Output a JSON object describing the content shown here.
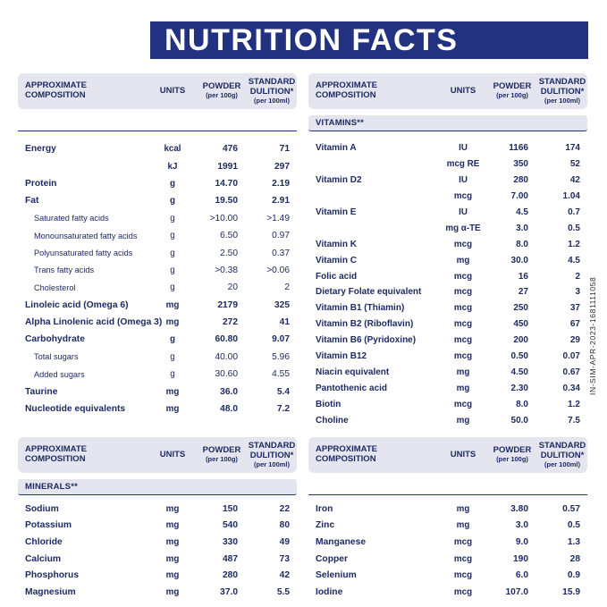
{
  "title": "NUTRITION FACTS",
  "side_code": "IN-SIM-APR-2023-1681111058",
  "colors": {
    "banner_navy": "#223180",
    "header_band": "#e5e5f0",
    "text_navy": "#1d2b63"
  },
  "header": {
    "composition": "APPROXIMATE COMPOSITION",
    "units": "UNITS",
    "powder": "POWDER",
    "powder_sub": "(per 100g)",
    "standard": "STANDARD DULITION*",
    "standard_sub": "(per 100ml)"
  },
  "tables": [
    {
      "section": "",
      "rows": [
        {
          "name": "Energy",
          "units": "kcal",
          "powder": "476",
          "standard": "71",
          "bold": true,
          "indent": false
        },
        {
          "name": "",
          "units": "kJ",
          "powder": "1991",
          "standard": "297",
          "bold": true,
          "indent": false
        },
        {
          "name": "Protein",
          "units": "g",
          "powder": "14.70",
          "standard": "2.19",
          "bold": true,
          "indent": false
        },
        {
          "name": "Fat",
          "units": "g",
          "powder": "19.50",
          "standard": "2.91",
          "bold": true,
          "indent": false
        },
        {
          "name": "Saturated fatty acids",
          "units": "g",
          "powder": ">10.00",
          "standard": ">1.49",
          "bold": false,
          "indent": true
        },
        {
          "name": "Monounsaturated fatty acids",
          "units": "g",
          "powder": "6.50",
          "standard": "0.97",
          "bold": false,
          "indent": true
        },
        {
          "name": "Polyunsaturated fatty acids",
          "units": "g",
          "powder": "2.50",
          "standard": "0.37",
          "bold": false,
          "indent": true
        },
        {
          "name": "Trans fatty acids",
          "units": "g",
          "powder": ">0.38",
          "standard": ">0.06",
          "bold": false,
          "indent": true
        },
        {
          "name": "Cholesterol",
          "units": "g",
          "powder": "20",
          "standard": "2",
          "bold": false,
          "indent": true
        },
        {
          "name": "Linoleic acid (Omega 6)",
          "units": "mg",
          "powder": "2179",
          "standard": "325",
          "bold": true,
          "indent": false
        },
        {
          "name": "Alpha Linolenic acid (Omega 3)",
          "units": "mg",
          "powder": "272",
          "standard": "41",
          "bold": true,
          "indent": false
        },
        {
          "name": "Carbohydrate",
          "units": "g",
          "powder": "60.80",
          "standard": "9.07",
          "bold": true,
          "indent": false
        },
        {
          "name": "Total sugars",
          "units": "g",
          "powder": "40.00",
          "standard": "5.96",
          "bold": false,
          "indent": true
        },
        {
          "name": "Added sugars",
          "units": "g",
          "powder": "30.60",
          "standard": "4.55",
          "bold": false,
          "indent": true
        },
        {
          "name": "Taurine",
          "units": "mg",
          "powder": "36.0",
          "standard": "5.4",
          "bold": true,
          "indent": false
        },
        {
          "name": "Nucleotide equivalents",
          "units": "mg",
          "powder": "48.0",
          "standard": "7.2",
          "bold": true,
          "indent": false
        }
      ]
    },
    {
      "section": "VITAMINS**",
      "rows": [
        {
          "name": "Vitamin A",
          "units": "IU",
          "powder": "1166",
          "standard": "174",
          "bold": true,
          "indent": false
        },
        {
          "name": "",
          "units": "mcg RE",
          "powder": "350",
          "standard": "52",
          "bold": true,
          "indent": false
        },
        {
          "name": "Vitamin D2",
          "units": "IU",
          "powder": "280",
          "standard": "42",
          "bold": true,
          "indent": false
        },
        {
          "name": "",
          "units": "mcg",
          "powder": "7.00",
          "standard": "1.04",
          "bold": true,
          "indent": false
        },
        {
          "name": "Vitamin E",
          "units": "IU",
          "powder": "4.5",
          "standard": "0.7",
          "bold": true,
          "indent": false
        },
        {
          "name": "",
          "units": "mg α-TE",
          "powder": "3.0",
          "standard": "0.5",
          "bold": true,
          "indent": false
        },
        {
          "name": "Vitamin K",
          "units": "mcg",
          "powder": "8.0",
          "standard": "1.2",
          "bold": true,
          "indent": false
        },
        {
          "name": "Vitamin C",
          "units": "mg",
          "powder": "30.0",
          "standard": "4.5",
          "bold": true,
          "indent": false
        },
        {
          "name": "Folic acid",
          "units": "mcg",
          "powder": "16",
          "standard": "2",
          "bold": true,
          "indent": false
        },
        {
          "name": "Dietary Folate equivalent",
          "units": "mcg",
          "powder": "27",
          "standard": "3",
          "bold": true,
          "indent": false
        },
        {
          "name": "Vitamin B1 (Thiamin)",
          "units": "mcg",
          "powder": "250",
          "standard": "37",
          "bold": true,
          "indent": false
        },
        {
          "name": "Vitamin B2 (Riboflavin)",
          "units": "mcg",
          "powder": "450",
          "standard": "67",
          "bold": true,
          "indent": false
        },
        {
          "name": "Vitamin B6 (Pyridoxine)",
          "units": "mcg",
          "powder": "200",
          "standard": "29",
          "bold": true,
          "indent": false
        },
        {
          "name": "Vitamin B12",
          "units": "mcg",
          "powder": "0.50",
          "standard": "0.07",
          "bold": true,
          "indent": false
        },
        {
          "name": "Niacin equivalent",
          "units": "mg",
          "powder": "4.50",
          "standard": "0.67",
          "bold": true,
          "indent": false
        },
        {
          "name": "Pantothenic acid",
          "units": "mg",
          "powder": "2.30",
          "standard": "0.34",
          "bold": true,
          "indent": false
        },
        {
          "name": "Biotin",
          "units": "mcg",
          "powder": "8.0",
          "standard": "1.2",
          "bold": true,
          "indent": false
        },
        {
          "name": "Choline",
          "units": "mg",
          "powder": "50.0",
          "standard": "7.5",
          "bold": true,
          "indent": false
        }
      ]
    },
    {
      "section": "MINERALS**",
      "rows": [
        {
          "name": "Sodium",
          "units": "mg",
          "powder": "150",
          "standard": "22",
          "bold": true,
          "indent": false
        },
        {
          "name": "Potassium",
          "units": "mg",
          "powder": "540",
          "standard": "80",
          "bold": true,
          "indent": false
        },
        {
          "name": "Chloride",
          "units": "mg",
          "powder": "330",
          "standard": "49",
          "bold": true,
          "indent": false
        },
        {
          "name": "Calcium",
          "units": "mg",
          "powder": "487",
          "standard": "73",
          "bold": true,
          "indent": false
        },
        {
          "name": "Phosphorus",
          "units": "mg",
          "powder": "280",
          "standard": "42",
          "bold": true,
          "indent": false
        },
        {
          "name": "Magnesium",
          "units": "mg",
          "powder": "37.0",
          "standard": "5.5",
          "bold": true,
          "indent": false
        }
      ]
    },
    {
      "section": "",
      "rows": [
        {
          "name": "Iron",
          "units": "mg",
          "powder": "3.80",
          "standard": "0.57",
          "bold": true,
          "indent": false
        },
        {
          "name": "Zinc",
          "units": "mg",
          "powder": "3.0",
          "standard": "0.5",
          "bold": true,
          "indent": false
        },
        {
          "name": "Manganese",
          "units": "mcg",
          "powder": "9.0",
          "standard": "1.3",
          "bold": true,
          "indent": false
        },
        {
          "name": "Copper",
          "units": "mcg",
          "powder": "190",
          "standard": "28",
          "bold": true,
          "indent": false
        },
        {
          "name": "Selenium",
          "units": "mcg",
          "powder": "6.0",
          "standard": "0.9",
          "bold": true,
          "indent": false
        },
        {
          "name": "Iodine",
          "units": "mcg",
          "powder": "107.0",
          "standard": "15.9",
          "bold": true,
          "indent": false
        }
      ]
    }
  ]
}
